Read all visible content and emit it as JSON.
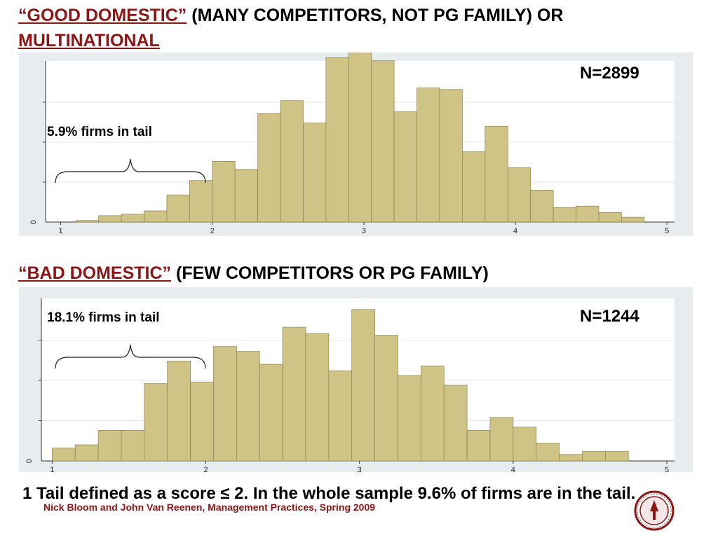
{
  "slide": {
    "title1": {
      "quote": "“GOOD DOMESTIC”",
      "mid": " (MANY COMPETITORS, NOT PG FAMILY) OR ",
      "end": "MULTINATIONAL"
    },
    "title2": {
      "quote": "“BAD DOMESTIC”",
      "rest": " (FEW COMPETITORS OR PG FAMILY)"
    },
    "footnote": "1 Tail defined as a score ≤ 2. In the whole sample 9.6% of firms are in the tail.",
    "credit": "Nick Bloom and John Van Reenen, Management Practices, Spring 2009",
    "colors": {
      "bar": "#cfc485",
      "bar_edge": "#8a8150",
      "panel_bg": "#e7ecef",
      "accent": "#8c1515"
    }
  },
  "chart_data": [
    {
      "type": "bar",
      "n_label": "N=2899",
      "tail_label": "5.9% firms in tail",
      "x_ticks": [
        "1",
        "2",
        "3",
        "4",
        "5"
      ],
      "y_ticks": [
        "0"
      ],
      "xlim": [
        0.9,
        5.05
      ],
      "ylim": [
        0,
        1.0
      ],
      "bin_width": 0.15,
      "bin_start": 1.1,
      "values": [
        0.01,
        0.04,
        0.05,
        0.07,
        0.17,
        0.26,
        0.38,
        0.33,
        0.68,
        0.76,
        0.62,
        1.03,
        1.08,
        1.01,
        0.69,
        0.84,
        0.83,
        0.44,
        0.6,
        0.34,
        0.2,
        0.09,
        0.1,
        0.06,
        0.03
      ]
    },
    {
      "type": "bar",
      "n_label": "N=1244",
      "tail_label": "18.1% firms in tail",
      "x_ticks": [
        "1",
        "2",
        "3",
        "4",
        "5"
      ],
      "y_ticks": [
        "0"
      ],
      "xlim": [
        0.93,
        5.05
      ],
      "ylim": [
        0,
        1.0
      ],
      "bin_width": 0.15,
      "bin_start": 1.0,
      "values": [
        0.08,
        0.1,
        0.19,
        0.19,
        0.48,
        0.62,
        0.49,
        0.71,
        0.68,
        0.6,
        0.83,
        0.79,
        0.56,
        0.94,
        0.78,
        0.53,
        0.59,
        0.47,
        0.19,
        0.27,
        0.21,
        0.11,
        0.04,
        0.06,
        0.06
      ]
    }
  ]
}
